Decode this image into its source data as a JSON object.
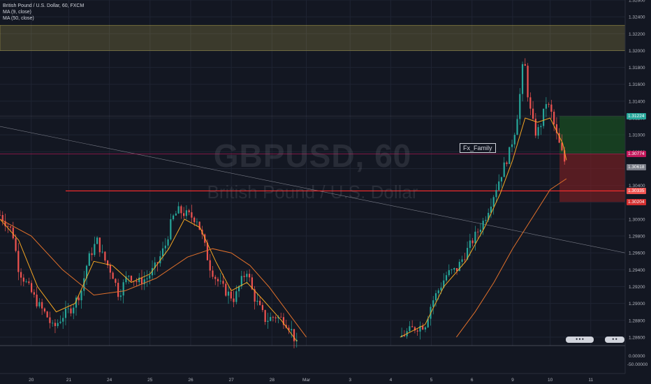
{
  "legend": {
    "title": "British Pound / U.S. Dollar, 60, FXCM",
    "ma9": "MA (9, close)",
    "ma50": "MA (50, close)"
  },
  "watermark": {
    "symbol": "GBPUSD, 60",
    "description": "British Pound / U.S. Dollar"
  },
  "annotation_label": "Fx_Family",
  "price_tags": {
    "target": "1.31224",
    "entry": "1.30774",
    "current": "1.30618",
    "support": "1.30335",
    "stop": "1.30204"
  },
  "colors": {
    "background": "#131722",
    "up": "#26a69a",
    "down": "#ef5350",
    "ma9": "#f5a623",
    "ma50": "#e0702b",
    "zone": "#f6e05e",
    "profit": "#1b5e20",
    "loss": "#7b1f24",
    "support_line": "#ff2d2d"
  },
  "chart_data": {
    "type": "candlestick",
    "symbol": "GBPUSD",
    "interval": "60",
    "source": "FXCM",
    "ylim": [
      1.285,
      1.326
    ],
    "y_ticks": [
      "1.32600",
      "1.32400",
      "1.32200",
      "1.32000",
      "1.31800",
      "1.31600",
      "1.31400",
      "1.31200",
      "1.31000",
      "1.30800",
      "1.30600",
      "1.30400",
      "1.30200",
      "1.30000",
      "1.29800",
      "1.29600",
      "1.29400",
      "1.29200",
      "1.29000",
      "1.28800",
      "1.28600"
    ],
    "y_tick_values": [
      1.326,
      1.324,
      1.322,
      1.32,
      1.318,
      1.316,
      1.314,
      1.312,
      1.31,
      1.308,
      1.306,
      1.304,
      1.302,
      1.3,
      1.298,
      1.296,
      1.294,
      1.292,
      1.29,
      1.288,
      1.286
    ],
    "lower_pane_ticks": [
      "0.00000",
      "-50.00000"
    ],
    "x_ticks": [
      "20",
      "21",
      "24",
      "25",
      "26",
      "27",
      "28",
      "Mar",
      "3",
      "4",
      "5",
      "6",
      "9",
      "10",
      "11"
    ],
    "x_tick_pos": [
      0.05,
      0.11,
      0.175,
      0.24,
      0.305,
      0.37,
      0.435,
      0.49,
      0.56,
      0.625,
      0.69,
      0.755,
      0.82,
      0.88,
      0.945
    ],
    "price_path": [
      [
        0.0,
        1.3005
      ],
      [
        0.02,
        1.2985
      ],
      [
        0.03,
        1.294
      ],
      [
        0.045,
        1.292
      ],
      [
        0.06,
        1.29
      ],
      [
        0.075,
        1.2885
      ],
      [
        0.085,
        1.287
      ],
      [
        0.1,
        1.2885
      ],
      [
        0.115,
        1.2895
      ],
      [
        0.13,
        1.2915
      ],
      [
        0.14,
        1.295
      ],
      [
        0.155,
        1.2975
      ],
      [
        0.165,
        1.2955
      ],
      [
        0.18,
        1.2935
      ],
      [
        0.19,
        1.291
      ],
      [
        0.205,
        1.2935
      ],
      [
        0.22,
        1.2925
      ],
      [
        0.235,
        1.293
      ],
      [
        0.25,
        1.2945
      ],
      [
        0.265,
        1.297
      ],
      [
        0.275,
        1.3
      ],
      [
        0.285,
        1.301
      ],
      [
        0.3,
        1.3005
      ],
      [
        0.315,
        1.3
      ],
      [
        0.325,
        1.2975
      ],
      [
        0.335,
        1.2945
      ],
      [
        0.345,
        1.293
      ],
      [
        0.36,
        1.2915
      ],
      [
        0.375,
        1.2905
      ],
      [
        0.385,
        1.2925
      ],
      [
        0.395,
        1.294
      ],
      [
        0.405,
        1.291
      ],
      [
        0.415,
        1.2895
      ],
      [
        0.425,
        1.288
      ],
      [
        0.44,
        1.2885
      ],
      [
        0.455,
        1.288
      ],
      [
        0.465,
        1.287
      ],
      [
        0.475,
        1.285
      ],
      [
        0.64,
        1.286
      ],
      [
        0.66,
        1.287
      ],
      [
        0.68,
        1.2875
      ],
      [
        0.69,
        1.29
      ],
      [
        0.715,
        1.2935
      ],
      [
        0.73,
        1.294
      ],
      [
        0.745,
        1.296
      ],
      [
        0.76,
        1.298
      ],
      [
        0.775,
        1.3
      ],
      [
        0.785,
        1.302
      ],
      [
        0.795,
        1.304
      ],
      [
        0.805,
        1.306
      ],
      [
        0.815,
        1.308
      ],
      [
        0.825,
        1.311
      ],
      [
        0.832,
        1.315
      ],
      [
        0.838,
        1.3195
      ],
      [
        0.844,
        1.315
      ],
      [
        0.85,
        1.312
      ],
      [
        0.858,
        1.31
      ],
      [
        0.866,
        1.3115
      ],
      [
        0.874,
        1.314
      ],
      [
        0.882,
        1.3125
      ],
      [
        0.89,
        1.31
      ],
      [
        0.898,
        1.308
      ],
      [
        0.906,
        1.3062
      ]
    ],
    "ma9_path": [
      [
        0.0,
        1.3
      ],
      [
        0.03,
        1.2975
      ],
      [
        0.06,
        1.292
      ],
      [
        0.09,
        1.289
      ],
      [
        0.12,
        1.29
      ],
      [
        0.15,
        1.295
      ],
      [
        0.18,
        1.2945
      ],
      [
        0.21,
        1.2925
      ],
      [
        0.24,
        1.2935
      ],
      [
        0.27,
        1.2965
      ],
      [
        0.295,
        1.3
      ],
      [
        0.32,
        1.299
      ],
      [
        0.345,
        1.295
      ],
      [
        0.37,
        1.2915
      ],
      [
        0.395,
        1.2925
      ],
      [
        0.42,
        1.2905
      ],
      [
        0.45,
        1.288
      ],
      [
        0.475,
        1.2855
      ],
      [
        0.64,
        1.286
      ],
      [
        0.68,
        1.2875
      ],
      [
        0.71,
        1.292
      ],
      [
        0.745,
        1.295
      ],
      [
        0.775,
        1.299
      ],
      [
        0.8,
        1.303
      ],
      [
        0.82,
        1.307
      ],
      [
        0.84,
        1.312
      ],
      [
        0.86,
        1.3115
      ],
      [
        0.88,
        1.312
      ],
      [
        0.9,
        1.309
      ],
      [
        0.906,
        1.307
      ]
    ],
    "ma50_path": [
      [
        0.0,
        1.3
      ],
      [
        0.05,
        1.298
      ],
      [
        0.1,
        1.294
      ],
      [
        0.15,
        1.291
      ],
      [
        0.2,
        1.2915
      ],
      [
        0.25,
        1.293
      ],
      [
        0.3,
        1.2955
      ],
      [
        0.34,
        1.2965
      ],
      [
        0.37,
        1.296
      ],
      [
        0.4,
        1.2945
      ],
      [
        0.43,
        1.292
      ],
      [
        0.46,
        1.289
      ],
      [
        0.49,
        1.286
      ],
      [
        0.73,
        1.286
      ],
      [
        0.76,
        1.289
      ],
      [
        0.79,
        1.2925
      ],
      [
        0.82,
        1.2965
      ],
      [
        0.85,
        1.3
      ],
      [
        0.88,
        1.3035
      ],
      [
        0.906,
        1.3048
      ]
    ],
    "zone": {
      "from": 1.32,
      "to": 1.323
    },
    "position": {
      "x_from": 0.895,
      "x_to": 1.0,
      "target": 1.31224,
      "entry": 1.30774,
      "stop": 1.30204
    },
    "support_level": 1.30335,
    "trendline": [
      [
        0.0,
        1.311
      ],
      [
        1.0,
        1.296
      ]
    ],
    "separator_level": 1.2853
  }
}
